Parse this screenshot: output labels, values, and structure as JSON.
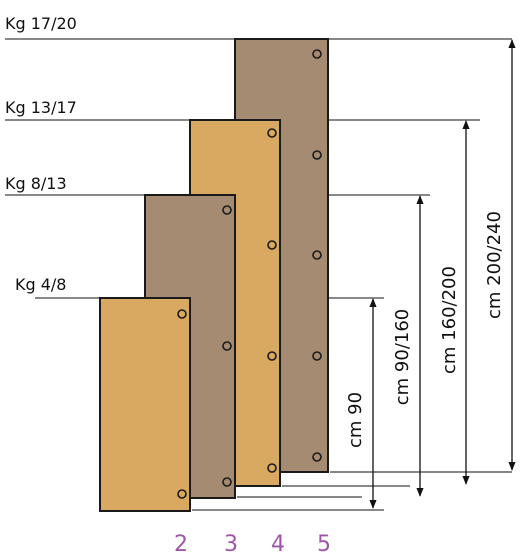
{
  "weights": {
    "w1": "Kg 17/20",
    "w2": "Kg 13/17",
    "w3": "Kg 8/13",
    "w4": "Kg 4/8"
  },
  "heights": {
    "h1": "cm 90",
    "h2": "cm 90/160",
    "h3": "cm 160/200",
    "h4": "cm 200/240"
  },
  "board_numbers": {
    "b2": "2",
    "b3": "3",
    "b4": "4",
    "b5": "5"
  },
  "colors": {
    "light_wood": "#D9A961",
    "dark_wood": "#A48B72",
    "outline": "#1a1a1a",
    "number_color": "#A056A8"
  }
}
